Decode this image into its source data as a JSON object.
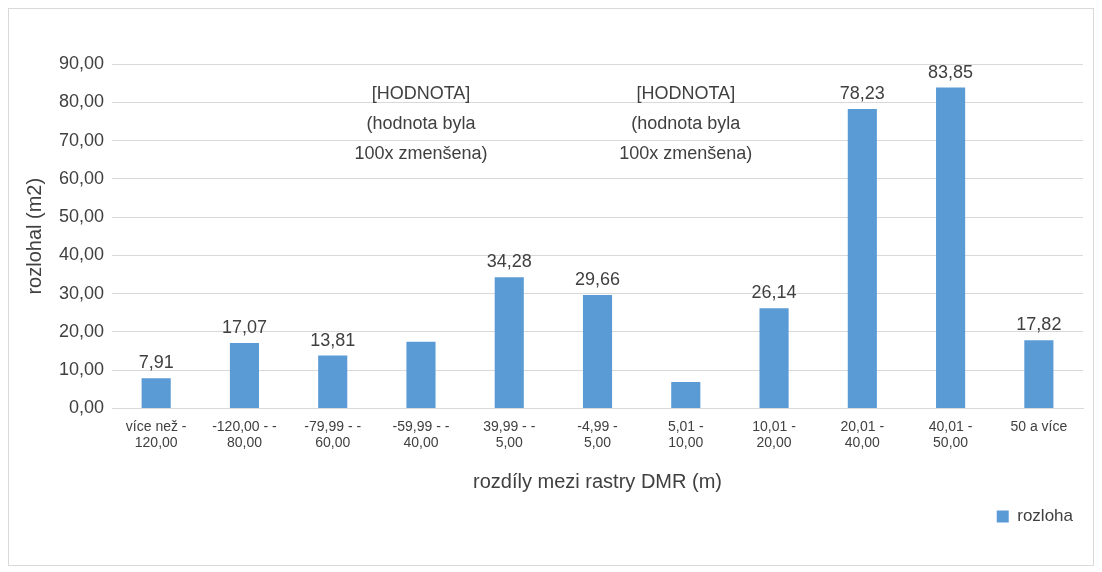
{
  "chart_data": {
    "type": "bar",
    "xlabel": "rozdíly mezi rastry DMR (m)",
    "ylabel": "rozlohal (m2)",
    "categories": [
      "více než -120,00",
      "-120,00 - -80,00",
      "-79,99 - -60,00",
      "-59,99 - -40,00",
      "39,99 - -5,00",
      "-4,99 - 5,00",
      "5,01 - 10,00",
      "10,01 - 20,00",
      "20,01 - 40,00",
      "40,01 - 50,00",
      "50 a více"
    ],
    "series": [
      {
        "name": "rozloha",
        "color": "#5b9bd5",
        "values": [
          7.91,
          17.07,
          13.81,
          17.4,
          34.28,
          29.66,
          6.9,
          26.14,
          78.23,
          83.85,
          17.82
        ],
        "value_labels": [
          "7,91",
          "17,07",
          "13,81",
          null,
          "34,28",
          "29,66",
          null,
          "26,14",
          "78,23",
          "83,85",
          "17,82"
        ]
      }
    ],
    "annotations": [
      "[HODNOTA] (hodnota byla 100x zmenšena)",
      "[HODNOTA] (hodnota byla 100x zmenšena)"
    ],
    "ylim": [
      0,
      90
    ],
    "yticks": [
      {
        "value": 0,
        "label": "0,00"
      },
      {
        "value": 10,
        "label": "10,00"
      },
      {
        "value": 20,
        "label": "20,00"
      },
      {
        "value": 30,
        "label": "30,00"
      },
      {
        "value": 40,
        "label": "40,00"
      },
      {
        "value": 50,
        "label": "50,00"
      },
      {
        "value": 60,
        "label": "60,00"
      },
      {
        "value": 70,
        "label": "70,00"
      },
      {
        "value": 80,
        "label": "80,00"
      },
      {
        "value": 90,
        "label": "90,00"
      }
    ],
    "grid": "y",
    "legend": "bottom right"
  }
}
